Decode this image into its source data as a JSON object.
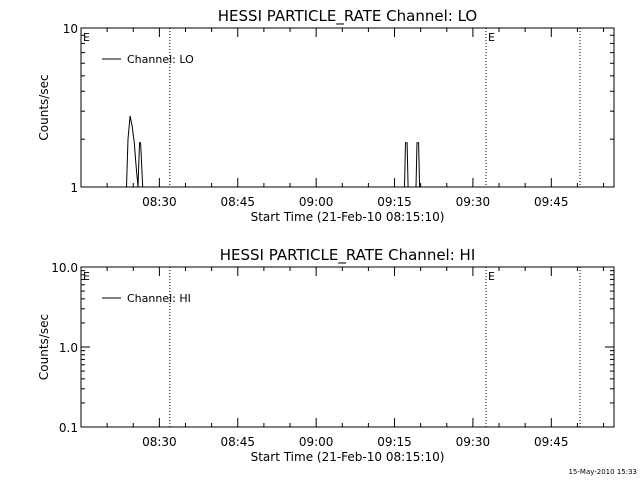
{
  "chart_data": [
    {
      "type": "line",
      "title": "HESSI PARTICLE_RATE Channel: LO",
      "xlabel": "Start Time (21-Feb-10 08:15:10)",
      "ylabel": "Counts/sec",
      "yscale": "log",
      "ylim": [
        1,
        10
      ],
      "ytick_labels": [
        {
          "value": 1,
          "label": "1"
        },
        {
          "value": 10,
          "label": "10"
        }
      ],
      "xlim_minutes": [
        0,
        102
      ],
      "xtick_labels": [
        {
          "minute": 15,
          "label": "08:30"
        },
        {
          "minute": 30,
          "label": "08:45"
        },
        {
          "minute": 45,
          "label": "09:00"
        },
        {
          "minute": 60,
          "label": "09:15"
        },
        {
          "minute": 75,
          "label": "09:30"
        },
        {
          "minute": 90,
          "label": "09:45"
        }
      ],
      "vlines": [
        {
          "minute": 0,
          "label": "E"
        },
        {
          "minute": 17.0,
          "label": ""
        },
        {
          "minute": 77.5,
          "label": "E"
        },
        {
          "minute": 95.5,
          "label": ""
        }
      ],
      "legend": {
        "position": "top-left"
      },
      "series": [
        {
          "name": "Channel: LO",
          "x": [
            8.7,
            9.0,
            9.4,
            9.8,
            10.2,
            10.5,
            10.9,
            11.2,
            11.4,
            11.8,
            12.0,
            61.9,
            62.1,
            62.4,
            62.6,
            64.1,
            64.3,
            64.6,
            64.8
          ],
          "y": [
            1,
            2,
            2.8,
            2.4,
            1.9,
            1.4,
            1,
            1.9,
            1.9,
            1,
            1,
            1,
            1.9,
            1.9,
            1,
            1,
            1.9,
            1.9,
            1
          ]
        }
      ]
    },
    {
      "type": "line",
      "title": "HESSI PARTICLE_RATE Channel: HI",
      "xlabel": "Start Time (21-Feb-10 08:15:10)",
      "ylabel": "Counts/sec",
      "yscale": "log",
      "ylim": [
        0.1,
        10
      ],
      "ytick_labels": [
        {
          "value": 0.1,
          "label": "0.1"
        },
        {
          "value": 1,
          "label": "1.0"
        },
        {
          "value": 10,
          "label": "10.0"
        }
      ],
      "xlim_minutes": [
        0,
        102
      ],
      "xtick_labels": [
        {
          "minute": 15,
          "label": "08:30"
        },
        {
          "minute": 30,
          "label": "08:45"
        },
        {
          "minute": 45,
          "label": "09:00"
        },
        {
          "minute": 60,
          "label": "09:15"
        },
        {
          "minute": 75,
          "label": "09:30"
        },
        {
          "minute": 90,
          "label": "09:45"
        }
      ],
      "vlines": [
        {
          "minute": 0,
          "label": "E"
        },
        {
          "minute": 17.0,
          "label": ""
        },
        {
          "minute": 77.5,
          "label": "E"
        },
        {
          "minute": 95.5,
          "label": ""
        }
      ],
      "legend": {
        "position": "top-left"
      },
      "series": [
        {
          "name": "Channel: HI",
          "x": [],
          "y": []
        }
      ]
    }
  ],
  "footer": {
    "timestamp": "15-May-2010 15:33"
  }
}
